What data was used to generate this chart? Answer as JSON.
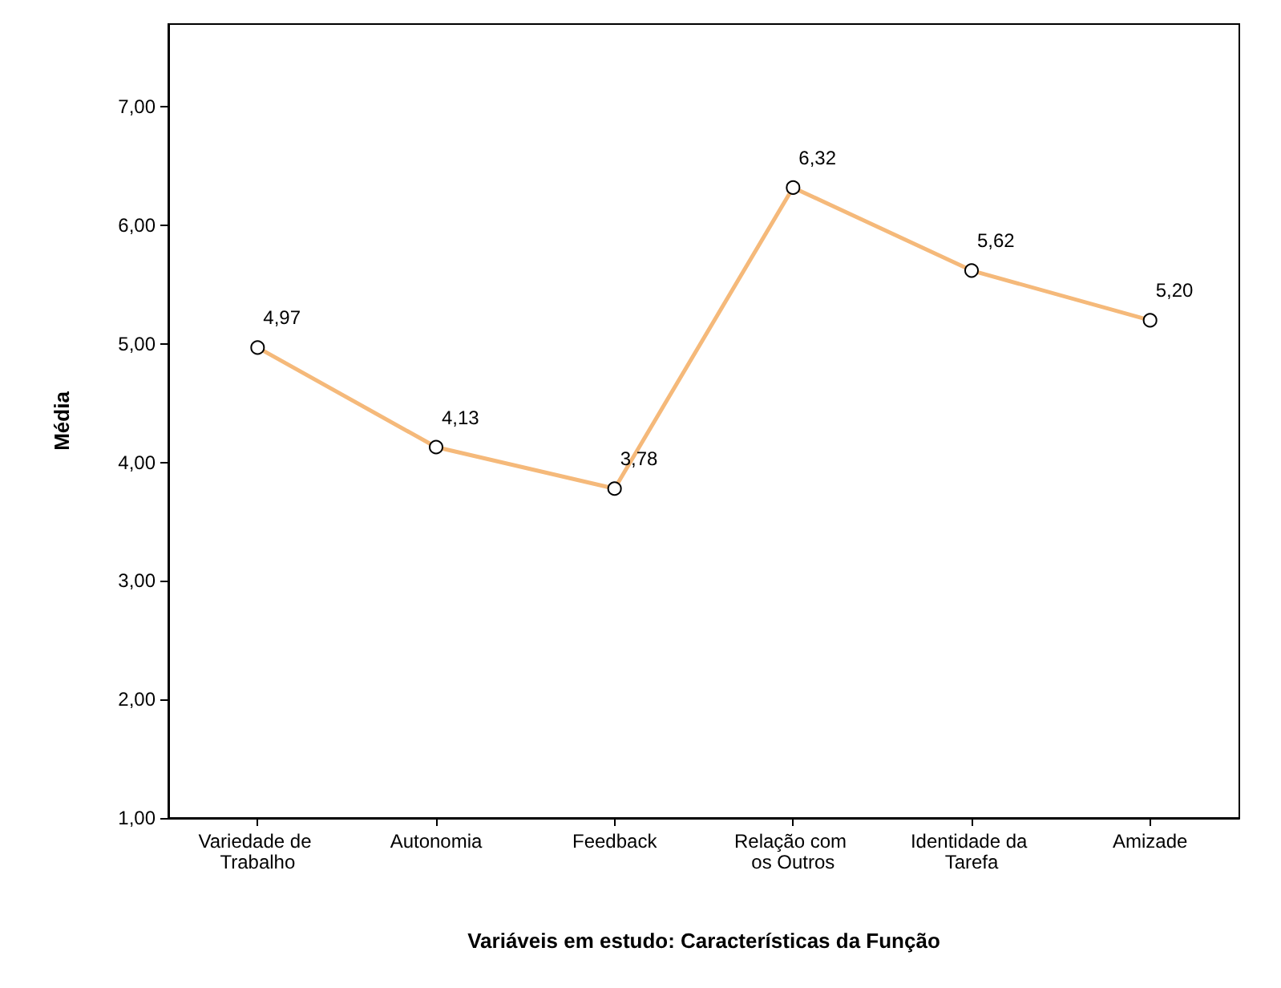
{
  "chart_data": {
    "type": "line",
    "xlabel": "Variáveis em estudo: Características da Função",
    "ylabel": "Média",
    "categories": [
      "Variedade de Trabalho",
      "Autonomia",
      "Feedback",
      "Relação com os Outros",
      "Identidade da Tarefa",
      "Amizade"
    ],
    "values": [
      4.97,
      4.13,
      3.78,
      6.32,
      5.62,
      5.2
    ],
    "value_labels": [
      "4,97",
      "4,13",
      "3,78",
      "6,32",
      "5,62",
      "5,20"
    ],
    "color": "#f5b97a",
    "marker": "circle",
    "grid": false,
    "ylim": [
      1,
      7.7
    ],
    "yticks": [
      {
        "value": 1,
        "label": "1,00"
      },
      {
        "value": 2,
        "label": "2,00"
      },
      {
        "value": 3,
        "label": "3,00"
      },
      {
        "value": 4,
        "label": "4,00"
      },
      {
        "value": 5,
        "label": "5,00"
      },
      {
        "value": 6,
        "label": "6,00"
      },
      {
        "value": 7,
        "label": "7,00"
      }
    ]
  }
}
